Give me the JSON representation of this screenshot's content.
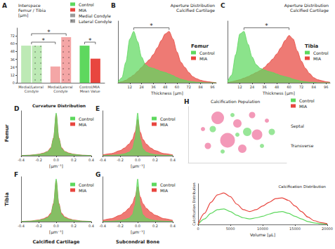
{
  "chart_data": [
    {
      "panel": "A",
      "type": "bar",
      "title": "Interspace\nFemur / Tibia\n[µm]",
      "categories": [
        "Medial/Lateral Condyle",
        "Medial/Lateral Condyle",
        "Control/MIA Mean Value"
      ],
      "series": [
        {
          "name": "Control",
          "color": "#5ed85e",
          "values": [
            null,
            null,
            57
          ]
        },
        {
          "name": "MIA",
          "color": "#e8463f",
          "values": [
            null,
            null,
            37
          ]
        },
        {
          "name": "Medial Condyle",
          "color": "#9a9a9a",
          "values": [
            57,
            25,
            null
          ],
          "colors": [
            "#bde9b5",
            "#f4a6a6",
            null
          ]
        },
        {
          "name": "Lateral Condyle",
          "color": "#9a9a9a",
          "marker": "dots",
          "values": [
            57,
            70,
            null
          ],
          "colors": [
            "#bde9b5",
            "#f4a6a6",
            null
          ]
        }
      ],
      "ylim": [
        0,
        84
      ],
      "yticks": [
        0,
        12,
        24,
        36,
        48,
        60,
        72
      ],
      "legend": "top-right",
      "significance": [
        {
          "text": "*",
          "from": {
            "category": 0
          },
          "to": {
            "category": 1,
            "series": "Lateral Condyle"
          }
        },
        {
          "text": "*",
          "from": {
            "category": 0
          },
          "to": {
            "category": 1,
            "series": "Medial Condyle"
          }
        },
        {
          "text": "*",
          "from": {
            "category": 2,
            "series": "Control"
          },
          "to": {
            "category": 2,
            "series": "MIA"
          }
        }
      ]
    },
    {
      "panel": "B",
      "type": "area",
      "title": "Aperture Distribution\nCalcified Cartilage",
      "label": "Femur",
      "x": [
        0,
        4,
        8,
        12,
        16,
        20,
        24,
        28,
        32,
        36,
        40,
        44,
        48,
        52,
        56,
        60,
        64,
        68,
        72,
        76,
        80,
        84,
        88,
        92,
        96,
        100
      ],
      "series": [
        {
          "name": "Control",
          "color": "#5ed85e",
          "values": [
            0.02,
            0.1,
            0.4,
            0.85,
            1.0,
            0.8,
            0.5,
            0.35,
            0.3,
            0.28,
            0.25,
            0.22,
            0.2,
            0.17,
            0.14,
            0.1,
            0.07,
            0.05,
            0.03,
            0.02,
            0.01,
            0.01,
            0,
            0,
            0,
            0
          ]
        },
        {
          "name": "MIA",
          "color": "#e8463f",
          "values": [
            0,
            0.02,
            0.05,
            0.1,
            0.15,
            0.22,
            0.3,
            0.38,
            0.45,
            0.55,
            0.68,
            0.82,
            0.95,
            1.0,
            0.85,
            0.6,
            0.4,
            0.3,
            0.2,
            0.12,
            0.08,
            0.05,
            0.03,
            0.02,
            0.01,
            0
          ]
        }
      ],
      "xlabel": "Thickness [µm]",
      "xlim": [
        0,
        100
      ],
      "xticks": [
        12,
        24,
        36,
        48,
        60,
        72,
        84,
        96
      ],
      "ylim": [
        0,
        1.2
      ],
      "tick_labels": "x",
      "legend": "right",
      "significance": [
        {
          "text": "*",
          "from": "Control",
          "to": "MIA"
        }
      ]
    },
    {
      "panel": "C",
      "type": "area",
      "title": "Aperture Distribution\nCalcified Cartilage",
      "label": "Tibia",
      "x": [
        0,
        4,
        8,
        12,
        16,
        20,
        24,
        28,
        32,
        36,
        40,
        44,
        48,
        52,
        56,
        60,
        64,
        68,
        72,
        76,
        80,
        84,
        88,
        92,
        96,
        100
      ],
      "series": [
        {
          "name": "Control",
          "color": "#5ed85e",
          "values": [
            0.02,
            0.15,
            0.55,
            0.95,
            1.0,
            0.75,
            0.5,
            0.35,
            0.28,
            0.25,
            0.22,
            0.2,
            0.17,
            0.14,
            0.12,
            0.1,
            0.07,
            0.05,
            0.03,
            0.02,
            0.01,
            0.01,
            0,
            0,
            0,
            0
          ]
        },
        {
          "name": "MIA",
          "color": "#e8463f",
          "values": [
            0,
            0.02,
            0.04,
            0.06,
            0.09,
            0.12,
            0.16,
            0.2,
            0.24,
            0.3,
            0.38,
            0.46,
            0.56,
            0.68,
            0.82,
            0.92,
            0.85,
            0.62,
            0.42,
            0.28,
            0.18,
            0.1,
            0.06,
            0.04,
            0.02,
            0.01
          ]
        }
      ],
      "xlabel": "Thickness [µm]",
      "xlim": [
        0,
        100
      ],
      "xticks": [
        12,
        24,
        36,
        48,
        60,
        72,
        84,
        96
      ],
      "ylim": [
        0,
        1.2
      ],
      "tick_labels": "x",
      "legend": "right",
      "significance": [
        {
          "text": "*",
          "from": "Control",
          "to": "MIA"
        }
      ]
    },
    {
      "panel": "D",
      "type": "area",
      "title": "Curvature Distribution",
      "row_label": "Femur",
      "x": [
        -0.4,
        -0.3,
        -0.2,
        -0.15,
        -0.1,
        -0.06,
        -0.03,
        0,
        0.03,
        0.06,
        0.1,
        0.15,
        0.2,
        0.3,
        0.4
      ],
      "series": [
        {
          "name": "Control",
          "color": "#5ed85e",
          "values": [
            0.005,
            0.01,
            0.03,
            0.05,
            0.09,
            0.17,
            0.4,
            1,
            0.4,
            0.17,
            0.09,
            0.05,
            0.03,
            0.01,
            0.005
          ]
        },
        {
          "name": "MIA",
          "color": "#e8463f",
          "values": [
            0.005,
            0.012,
            0.035,
            0.06,
            0.1,
            0.19,
            0.42,
            0.97,
            0.42,
            0.19,
            0.1,
            0.06,
            0.035,
            0.012,
            0.005
          ]
        }
      ],
      "xlabel": "[µm⁻¹]",
      "xlim": [
        -0.4,
        0.4
      ],
      "xticks": [
        -0.4,
        -0.2,
        {
          "value": 0,
          "label": "0.0"
        },
        0.2,
        0.4
      ],
      "ylim": [
        0,
        1.05
      ],
      "tick_labels": "x",
      "legend": "right"
    },
    {
      "panel": "E",
      "type": "area",
      "x": [
        -0.4,
        -0.3,
        -0.2,
        -0.15,
        -0.1,
        -0.06,
        -0.03,
        0,
        0.03,
        0.06,
        0.1,
        0.15,
        0.2,
        0.3,
        0.4
      ],
      "series": [
        {
          "name": "Control",
          "color": "#5ed85e",
          "values": [
            0.004,
            0.01,
            0.025,
            0.045,
            0.08,
            0.16,
            0.38,
            1,
            0.38,
            0.16,
            0.08,
            0.045,
            0.025,
            0.01,
            0.004
          ]
        },
        {
          "name": "MIA",
          "color": "#e8463f",
          "values": [
            0.02,
            0.05,
            0.12,
            0.18,
            0.27,
            0.38,
            0.55,
            0.85,
            0.55,
            0.38,
            0.27,
            0.18,
            0.12,
            0.05,
            0.02
          ]
        }
      ],
      "xlabel": "[µm⁻¹]",
      "xlim": [
        -0.4,
        0.4
      ],
      "xticks": [
        -0.4,
        -0.2,
        {
          "value": 0,
          "label": "0.0"
        },
        0.2,
        0.4
      ],
      "ylim": [
        0,
        1.05
      ],
      "tick_labels": "x",
      "legend": "right"
    },
    {
      "panel": "F",
      "type": "area",
      "row_label": "Tibia",
      "column_label": "Calcified Cartilage",
      "x": [
        -0.4,
        -0.3,
        -0.2,
        -0.15,
        -0.1,
        -0.06,
        -0.03,
        0,
        0.03,
        0.06,
        0.1,
        0.15,
        0.2,
        0.3,
        0.4
      ],
      "series": [
        {
          "name": "Control",
          "color": "#5ed85e",
          "values": [
            0.005,
            0.01,
            0.03,
            0.05,
            0.09,
            0.17,
            0.4,
            1,
            0.4,
            0.17,
            0.09,
            0.05,
            0.03,
            0.01,
            0.005
          ]
        },
        {
          "name": "MIA",
          "color": "#e8463f",
          "values": [
            0.006,
            0.013,
            0.038,
            0.065,
            0.11,
            0.2,
            0.43,
            0.96,
            0.43,
            0.2,
            0.11,
            0.065,
            0.038,
            0.013,
            0.006
          ]
        }
      ],
      "xlabel": "[µm⁻¹]",
      "xlim": [
        -0.4,
        0.4
      ],
      "xticks": [
        -0.4,
        -0.2,
        {
          "value": 0,
          "label": "0.0"
        },
        0.2,
        0.4
      ],
      "ylim": [
        0,
        1.05
      ],
      "tick_labels": "x",
      "legend": "right"
    },
    {
      "panel": "G",
      "type": "area",
      "column_label": "Subcondral Bone",
      "x": [
        -0.4,
        -0.3,
        -0.2,
        -0.15,
        -0.1,
        -0.06,
        -0.03,
        0,
        0.03,
        0.06,
        0.1,
        0.15,
        0.2,
        0.3,
        0.4
      ],
      "series": [
        {
          "name": "Control",
          "color": "#5ed85e",
          "values": [
            0.004,
            0.01,
            0.025,
            0.045,
            0.08,
            0.16,
            0.38,
            1,
            0.38,
            0.16,
            0.08,
            0.045,
            0.025,
            0.01,
            0.004
          ]
        },
        {
          "name": "MIA",
          "color": "#e8463f",
          "values": [
            0.03,
            0.07,
            0.15,
            0.22,
            0.31,
            0.42,
            0.58,
            0.82,
            0.58,
            0.42,
            0.31,
            0.22,
            0.15,
            0.07,
            0.03
          ]
        }
      ],
      "xlabel": "[µm⁻¹]",
      "xlim": [
        -0.4,
        0.4
      ],
      "xticks": [
        -0.4,
        -0.2,
        {
          "value": 0,
          "label": "0.0"
        },
        0.2,
        0.4
      ],
      "ylim": [
        0,
        1.05
      ],
      "tick_labels": "x",
      "legend": "right"
    },
    {
      "panel": "H",
      "type": "scatter",
      "title": "Calcification Population",
      "annotations": [
        "Septal",
        "Transverse"
      ],
      "series": [
        {
          "name": "Control",
          "color": "#7ee07e",
          "x": [
            2.5,
            4.5,
            6,
            7.5,
            3.5,
            8.5,
            5
          ],
          "y": [
            6,
            8.5,
            5.5,
            3,
            2,
            5.5,
            5
          ],
          "sizes": [
            3,
            2,
            4,
            2,
            2,
            3,
            2
          ]
        },
        {
          "name": "MIA",
          "color": "#f07fa6",
          "x": [
            3,
            5,
            6.5,
            4,
            7,
            2,
            8,
            5.5,
            1.5
          ],
          "y": [
            8,
            7,
            8.5,
            4,
            5,
            3,
            7.5,
            2.5,
            6
          ],
          "sizes": [
            6,
            4,
            3,
            7,
            5,
            3,
            2,
            4,
            2
          ]
        }
      ],
      "xlim": [
        0,
        10
      ],
      "ylim": [
        0,
        10
      ],
      "tick_labels": false,
      "legend": "top-right"
    },
    {
      "type": "line",
      "title": "Calcification Distribution",
      "ylabel": "Calcification Distribution",
      "xlabel": "Volume [µL]",
      "x": [
        0,
        1000,
        2000,
        3000,
        4000,
        5000,
        6000,
        7000,
        8000,
        9000,
        10000,
        11000,
        12000,
        13000,
        14000,
        15000,
        16000,
        17000,
        18000,
        19000,
        20000
      ],
      "series": [
        {
          "name": "MIA",
          "color": "#e8463f",
          "values": [
            0,
            0.3,
            0.6,
            0.8,
            0.85,
            0.75,
            0.55,
            0.4,
            0.35,
            0.4,
            0.5,
            0.6,
            0.7,
            0.72,
            0.65,
            0.5,
            0.35,
            0.2,
            0.1,
            0.05,
            0.02
          ]
        },
        {
          "name": "Control",
          "color": "#5ed85e",
          "values": [
            0,
            0.15,
            0.3,
            0.4,
            0.42,
            0.35,
            0.25,
            0.18,
            0.15,
            0.18,
            0.22,
            0.28,
            0.33,
            0.35,
            0.3,
            0.22,
            0.15,
            0.08,
            0.04,
            0.02,
            0.01
          ]
        }
      ],
      "xlim": [
        0,
        20000
      ],
      "xticks": [
        0,
        5000,
        10000,
        15000,
        20000
      ],
      "ylim": [
        0,
        1.1
      ],
      "tick_labels": "x"
    }
  ]
}
